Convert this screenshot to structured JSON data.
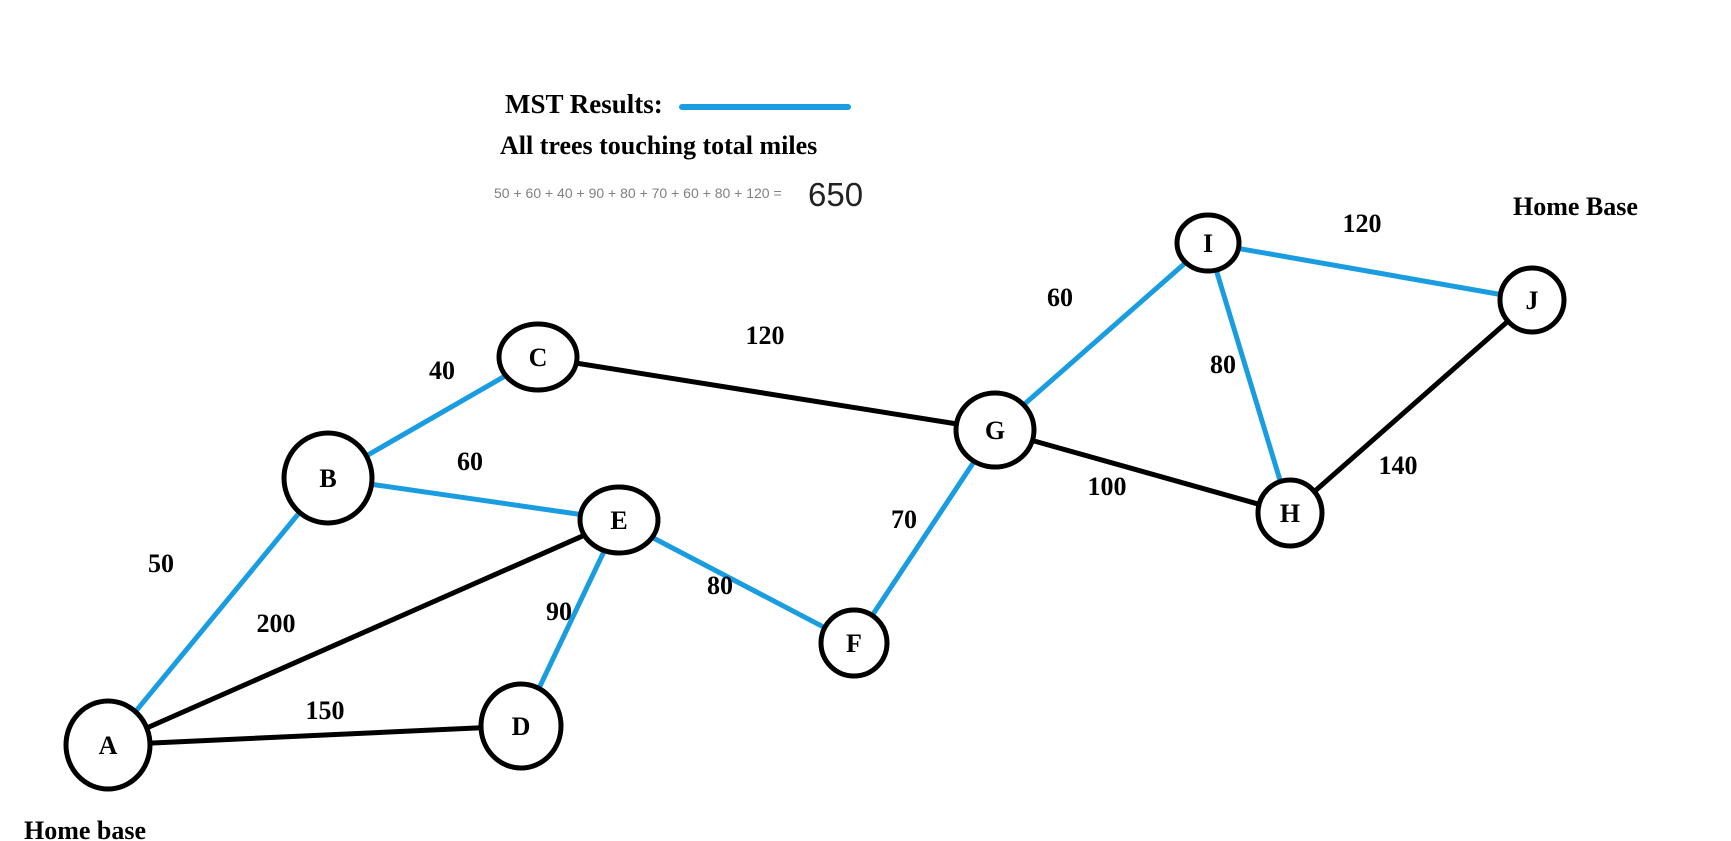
{
  "legend": {
    "title": "MST Results:",
    "subtitle": "All trees touching total miles",
    "formula": "50 + 60 + 40 + 90 + 80 + 70 + 60 + 80 + 120 =",
    "total": "650"
  },
  "annotations": {
    "home_base_a": "Home base",
    "home_base_j": "Home Base"
  },
  "colors": {
    "mst": "#1a9de0",
    "edge": "#000000",
    "text": "#000000",
    "formula": "#808080"
  },
  "nodes": [
    "A",
    "B",
    "C",
    "D",
    "E",
    "F",
    "G",
    "H",
    "I",
    "J"
  ],
  "edges": [
    {
      "from": "A",
      "to": "B",
      "weight": "50",
      "mst": true
    },
    {
      "from": "A",
      "to": "E",
      "weight": "200",
      "mst": false
    },
    {
      "from": "A",
      "to": "D",
      "weight": "150",
      "mst": false
    },
    {
      "from": "B",
      "to": "C",
      "weight": "40",
      "mst": true
    },
    {
      "from": "B",
      "to": "E",
      "weight": "60",
      "mst": true
    },
    {
      "from": "C",
      "to": "G",
      "weight": "120",
      "mst": false
    },
    {
      "from": "E",
      "to": "D",
      "weight": "90",
      "mst": true
    },
    {
      "from": "E",
      "to": "F",
      "weight": "80",
      "mst": true
    },
    {
      "from": "F",
      "to": "G",
      "weight": "70",
      "mst": true
    },
    {
      "from": "G",
      "to": "I",
      "weight": "60",
      "mst": true
    },
    {
      "from": "G",
      "to": "H",
      "weight": "100",
      "mst": false
    },
    {
      "from": "I",
      "to": "H",
      "weight": "80",
      "mst": true
    },
    {
      "from": "I",
      "to": "J",
      "weight": "120",
      "mst": true
    },
    {
      "from": "H",
      "to": "J",
      "weight": "140",
      "mst": false
    }
  ]
}
